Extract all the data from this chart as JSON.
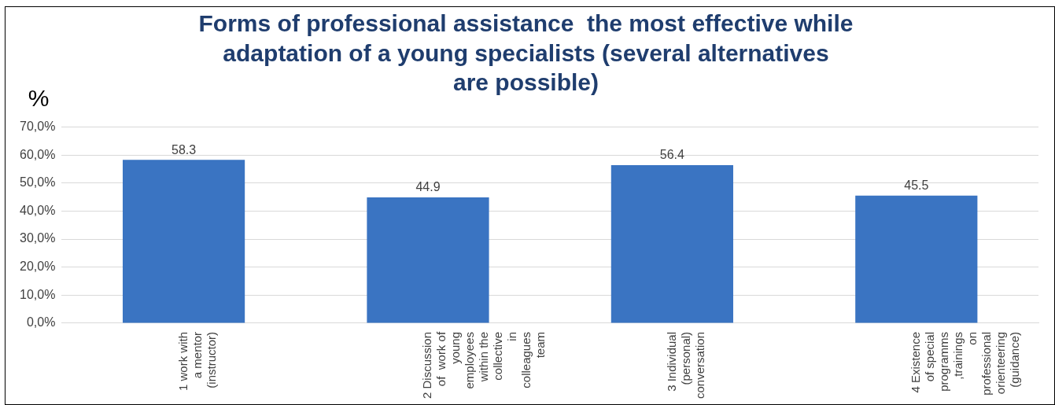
{
  "chart_data": {
    "type": "bar",
    "title": "Forms of professional assistance  the most effective while adaptation of a young specialists (several alternatives are possible)",
    "ylabel": "%",
    "categories": [
      "1 work with a mentor (instructor)",
      "2 Discussion  of  work of young employees within the collective in colleagues team",
      "3 Individual (personal) conversation",
      "4 Existence of special programms ,trainings on professional orienteering (guidance)"
    ],
    "values": [
      58.3,
      44.9,
      56.4,
      45.5
    ],
    "color": "#3a74c2",
    "data_labels": true,
    "grid": "y",
    "legend": false,
    "ylim": [
      0,
      70
    ],
    "yticks": [
      {
        "value": 0,
        "label": "0,0%"
      },
      {
        "value": 10,
        "label": "10,0%"
      },
      {
        "value": 20,
        "label": "20,0%"
      },
      {
        "value": 30,
        "label": "30,0%"
      },
      {
        "value": 40,
        "label": "40,0%"
      },
      {
        "value": 50,
        "label": "50,0%"
      },
      {
        "value": 60,
        "label": "60,0%"
      },
      {
        "value": 70,
        "label": "70,0%"
      }
    ]
  }
}
